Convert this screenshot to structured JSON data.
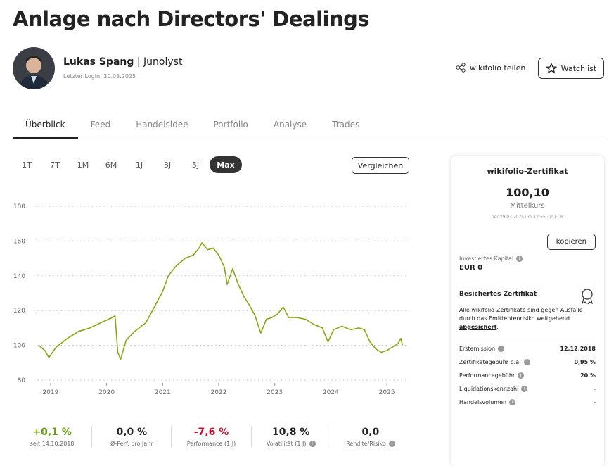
{
  "header": {
    "title": "Anlage nach Directors' Dealings"
  },
  "author": {
    "name": "Lukas Spang",
    "separator": "|",
    "company": "Junolyst",
    "login": "Letzter Login: 30.03.2025"
  },
  "actions": {
    "share": "wikifolio teilen",
    "watchlist": "Watchlist"
  },
  "tabs": [
    "Überblick",
    "Feed",
    "Handelsidee",
    "Portfolio",
    "Analyse",
    "Trades"
  ],
  "ranges": [
    "1T",
    "7T",
    "1M",
    "6M",
    "1J",
    "3J",
    "5J",
    "Max"
  ],
  "compare": "Vergleichen",
  "chart_data": {
    "type": "line",
    "color": "#84a816",
    "grid": true,
    "xlim": [
      2018.7,
      2025.35
    ],
    "xticks": [
      2019,
      2020,
      2021,
      2022,
      2023,
      2024,
      2025
    ],
    "ylim": [
      80,
      180
    ],
    "yticks": [
      80,
      100,
      120,
      140,
      160,
      180
    ],
    "x": [
      2018.79,
      2018.9,
      2018.97,
      2019.1,
      2019.3,
      2019.5,
      2019.7,
      2019.9,
      2020.1,
      2020.15,
      2020.2,
      2020.25,
      2020.35,
      2020.5,
      2020.7,
      2020.85,
      2021.0,
      2021.1,
      2021.25,
      2021.4,
      2021.55,
      2021.65,
      2021.7,
      2021.8,
      2021.9,
      2022.0,
      2022.1,
      2022.15,
      2022.25,
      2022.35,
      2022.45,
      2022.55,
      2022.65,
      2022.75,
      2022.85,
      2022.95,
      2023.05,
      2023.15,
      2023.25,
      2023.4,
      2023.55,
      2023.7,
      2023.85,
      2023.95,
      2024.05,
      2024.2,
      2024.35,
      2024.5,
      2024.6,
      2024.7,
      2024.8,
      2024.9,
      2025.0,
      2025.1,
      2025.2,
      2025.25,
      2025.28
    ],
    "values": [
      100,
      97,
      93,
      99,
      104,
      108,
      110,
      113,
      116,
      117,
      96,
      92,
      103,
      108,
      113,
      122,
      131,
      140,
      146,
      150,
      152,
      156,
      159,
      155,
      156,
      152,
      145,
      135,
      144,
      135,
      128,
      123,
      117,
      107,
      115,
      116,
      118,
      122,
      116,
      116,
      115,
      112,
      110,
      102,
      109,
      111,
      109,
      110,
      109,
      102,
      98,
      96,
      97,
      99,
      101,
      104,
      100
    ]
  },
  "stats": [
    {
      "value": "+0,1 %",
      "label": "seit 14.10.2018"
    },
    {
      "value": "0,0 %",
      "label": "Ø-Perf. pro Jahr"
    },
    {
      "value": "-7,6 %",
      "label": "Performance (1 J)"
    },
    {
      "value": "10,8 %",
      "label": "Volatilität (1 J)"
    },
    {
      "value": "0,0",
      "label": "Rendite/Risiko"
    }
  ],
  "sidebar": {
    "title": "wikifolio-Zertifikat",
    "price": "100,10",
    "price_label": "Mittelkurs",
    "price_note": "per 29.03.2025 um 12:55 · in EUR",
    "copy": "kopieren",
    "invested_label": "Investiertes Kapital",
    "invested_value": "EUR 0",
    "secured_title": "Besichertes Zertifikat",
    "secured_text": "Alle wikifolio-Zertifikate sind gegen Ausfälle durch das Emittentenrisiko weitgehend ",
    "secured_link": "abgesichert",
    "secured_end": ".",
    "details": [
      [
        "Erstemission",
        "12.12.2018"
      ],
      [
        "Zertifikategebühr p.a.",
        "0,95 %"
      ],
      [
        "Performancegebühr",
        "20 %"
      ],
      [
        "Liquidationskennzahl",
        "-"
      ],
      [
        "Handelsvolumen",
        "-"
      ]
    ]
  }
}
